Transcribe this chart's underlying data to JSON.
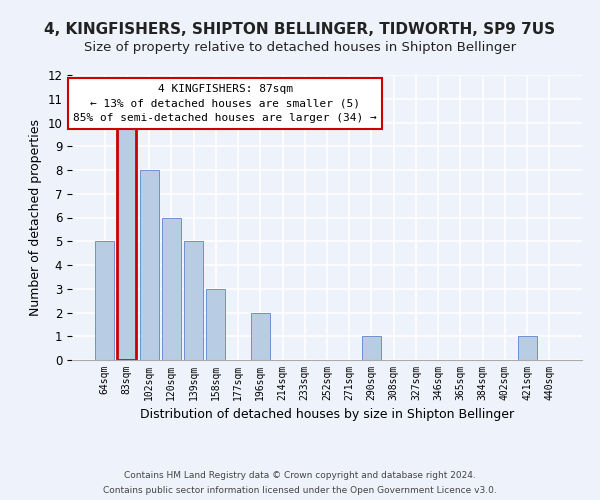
{
  "title": "4, KINGFISHERS, SHIPTON BELLINGER, TIDWORTH, SP9 7US",
  "subtitle": "Size of property relative to detached houses in Shipton Bellinger",
  "xlabel": "Distribution of detached houses by size in Shipton Bellinger",
  "ylabel": "Number of detached properties",
  "categories": [
    "64sqm",
    "83sqm",
    "102sqm",
    "120sqm",
    "139sqm",
    "158sqm",
    "177sqm",
    "196sqm",
    "214sqm",
    "233sqm",
    "252sqm",
    "271sqm",
    "290sqm",
    "308sqm",
    "327sqm",
    "346sqm",
    "365sqm",
    "384sqm",
    "402sqm",
    "421sqm",
    "440sqm"
  ],
  "values": [
    5,
    10,
    8,
    6,
    5,
    3,
    0,
    2,
    0,
    0,
    0,
    0,
    1,
    0,
    0,
    0,
    0,
    0,
    0,
    1,
    0
  ],
  "bar_color": "#b8cce4",
  "bar_edge_color": "#4472c4",
  "highlight_bar_index": 1,
  "highlight_edge_color": "#cc0000",
  "annotation_box_text": "4 KINGFISHERS: 87sqm\n← 13% of detached houses are smaller (5)\n85% of semi-detached houses are larger (34) →",
  "annotation_box_color": "#ffffff",
  "annotation_box_edge_color": "#cc0000",
  "footnote1": "Contains HM Land Registry data © Crown copyright and database right 2024.",
  "footnote2": "Contains public sector information licensed under the Open Government Licence v3.0.",
  "ylim": [
    0,
    12
  ],
  "yticks": [
    0,
    1,
    2,
    3,
    4,
    5,
    6,
    7,
    8,
    9,
    10,
    11,
    12
  ],
  "bg_color": "#eef2fa",
  "grid_color": "#ffffff",
  "title_fontsize": 11,
  "subtitle_fontsize": 9.5,
  "xlabel_fontsize": 9,
  "ylabel_fontsize": 9
}
